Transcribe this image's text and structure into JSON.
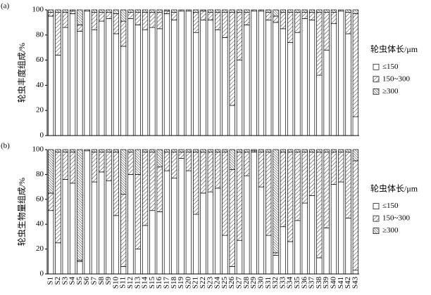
{
  "chart_data": [
    {
      "type": "bar",
      "stacked": true,
      "panel": "(a)",
      "y_label": "轮虫丰度组成/%",
      "legend_title": "轮虫体长/μm",
      "ylim": [
        0,
        100
      ],
      "yticks": [
        0,
        20,
        40,
        60,
        80,
        100
      ],
      "series": [
        {
          "name": "≤150",
          "color": "#ffffff",
          "hatch": "none",
          "values": [
            95,
            64,
            86,
            97,
            83,
            99,
            84,
            91,
            93,
            81,
            71,
            93,
            88,
            84,
            86,
            85,
            97,
            92,
            99,
            99,
            82,
            92,
            92,
            84,
            78,
            24,
            60,
            88,
            99,
            99,
            92,
            90,
            85,
            74,
            82,
            93,
            92,
            48,
            68,
            89,
            99,
            81,
            15
          ]
        },
        {
          "name": "150~300",
          "color": "#ffffff",
          "hatch": "/",
          "values": [
            3,
            34,
            12,
            2,
            5,
            1,
            14,
            7,
            5,
            16,
            20,
            5,
            10,
            14,
            12,
            13,
            2,
            6,
            1,
            1,
            16,
            7,
            6,
            14,
            20,
            74,
            38,
            10,
            1,
            1,
            6,
            5,
            13,
            24,
            16,
            5,
            6,
            50,
            30,
            9,
            1,
            17,
            82
          ]
        },
        {
          "name": "≥300",
          "color": "#ffffff",
          "hatch": "\\",
          "values": [
            2,
            2,
            2,
            1,
            12,
            0,
            2,
            2,
            2,
            3,
            9,
            2,
            2,
            2,
            2,
            2,
            1,
            2,
            0,
            0,
            2,
            1,
            2,
            2,
            2,
            2,
            2,
            2,
            0,
            0,
            2,
            5,
            2,
            2,
            2,
            2,
            2,
            2,
            2,
            2,
            0,
            2,
            3
          ]
        }
      ]
    },
    {
      "type": "bar",
      "stacked": true,
      "panel": "(b)",
      "y_label": "轮虫生物量组成/%",
      "legend_title": "轮虫体长/μm",
      "categories": [
        "S1",
        "S2",
        "S3",
        "S4",
        "S5",
        "S6",
        "S7",
        "S8",
        "S9",
        "S10",
        "S11",
        "S12",
        "S13",
        "S14",
        "S15",
        "S16",
        "S17",
        "S18",
        "S19",
        "S20",
        "S21",
        "S22",
        "S23",
        "S24",
        "S25",
        "S26",
        "S27",
        "S28",
        "S29",
        "S30",
        "S31",
        "S32",
        "S33",
        "S34",
        "S35",
        "S36",
        "S37",
        "S38",
        "S39",
        "S40",
        "S41",
        "S42",
        "S43"
      ],
      "ylim": [
        0,
        100
      ],
      "yticks": [
        0,
        20,
        40,
        60,
        80,
        100
      ],
      "series": [
        {
          "name": "≤150",
          "color": "#ffffff",
          "hatch": "none",
          "values": [
            51,
            25,
            76,
            73,
            10,
            99,
            74,
            82,
            75,
            47,
            6,
            80,
            20,
            39,
            51,
            50,
            83,
            77,
            93,
            83,
            48,
            65,
            66,
            69,
            31,
            6,
            27,
            79,
            98,
            70,
            31,
            15,
            38,
            26,
            43,
            57,
            63,
            13,
            37,
            72,
            74,
            45,
            3
          ]
        },
        {
          "name": "150~300",
          "color": "#ffffff",
          "hatch": "/",
          "values": [
            14,
            73,
            22,
            25,
            1,
            1,
            24,
            16,
            23,
            51,
            58,
            18,
            60,
            59,
            47,
            36,
            15,
            21,
            5,
            15,
            50,
            33,
            32,
            29,
            67,
            78,
            71,
            19,
            1,
            28,
            67,
            2,
            60,
            72,
            55,
            41,
            35,
            85,
            61,
            26,
            24,
            53,
            88
          ]
        },
        {
          "name": "≥300",
          "color": "#ffffff",
          "hatch": "\\",
          "values": [
            35,
            2,
            2,
            2,
            89,
            0,
            2,
            2,
            2,
            2,
            36,
            2,
            20,
            2,
            2,
            14,
            2,
            2,
            2,
            2,
            2,
            2,
            2,
            2,
            2,
            16,
            2,
            2,
            1,
            2,
            2,
            83,
            2,
            2,
            2,
            2,
            2,
            2,
            2,
            2,
            2,
            2,
            9
          ]
        }
      ]
    }
  ]
}
